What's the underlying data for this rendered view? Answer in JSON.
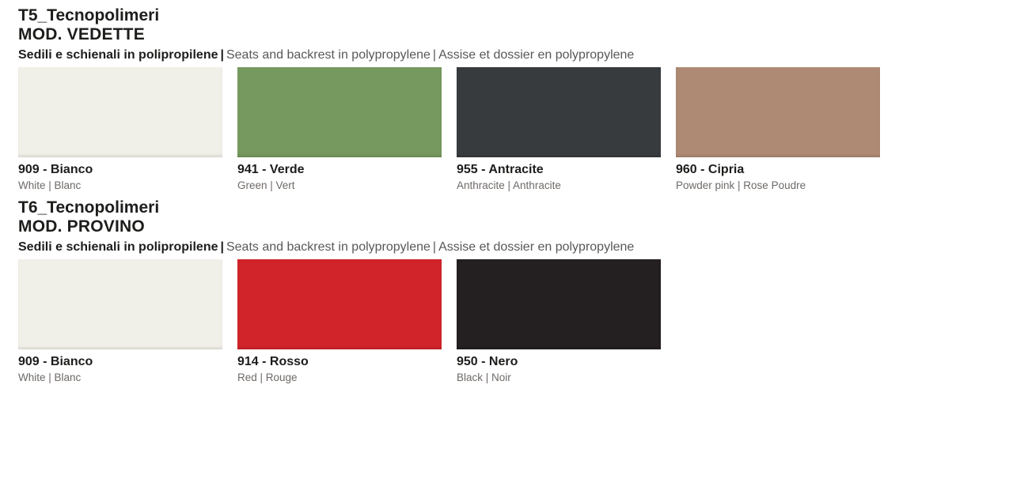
{
  "separator": "|",
  "sections": [
    {
      "series": "T5_Tecnopolimeri",
      "model": "MOD. VEDETTE",
      "description": {
        "it": "Sedili e schienali in polipropilene",
        "en": "Seats and backrest in polypropylene",
        "fr": "Assise et dossier en polypropylene"
      },
      "swatches": [
        {
          "code": "909 - Bianco",
          "names": "White | Blanc",
          "color": "#F1F0E8"
        },
        {
          "code": "941 - Verde",
          "names": "Green | Vert",
          "color": "#76995F"
        },
        {
          "code": "955 - Antracite",
          "names": "Anthracite | Anthracite",
          "color": "#373B3D"
        },
        {
          "code": "960 - Cipria",
          "names": "Powder pink | Rose Poudre",
          "color": "#AE8A74"
        }
      ]
    },
    {
      "series": "T6_Tecnopolimeri",
      "model": "MOD. PROVINO",
      "description": {
        "it": "Sedili e schienali in polipropilene",
        "en": "Seats and backrest in polypropylene",
        "fr": "Assise et dossier en polypropylene"
      },
      "swatches": [
        {
          "code": "909 - Bianco",
          "names": "White | Blanc",
          "color": "#F1F0E8"
        },
        {
          "code": "914 - Rosso",
          "names": "Red | Rouge",
          "color": "#D0232A"
        },
        {
          "code": "950 - Nero",
          "names": "Black | Noir",
          "color": "#241F20"
        }
      ]
    }
  ]
}
